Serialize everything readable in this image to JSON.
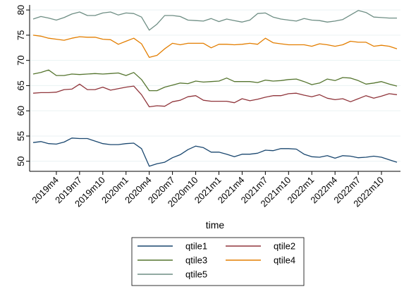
{
  "chart_data": {
    "type": "line",
    "title": "",
    "xlabel": "time",
    "ylabel": "",
    "ylim": [
      48,
      81
    ],
    "y_ticks": [
      50,
      55,
      60,
      65,
      70,
      75,
      80
    ],
    "x_start": "2019m1",
    "x_end": "2022m12",
    "x_ticks": [
      "2019m4",
      "2019m7",
      "2019m10",
      "2020m1",
      "2020m4",
      "2020m7",
      "2020m10",
      "2021m1",
      "2021m4",
      "2021m7",
      "2021m10",
      "2022m1",
      "2022m4",
      "2022m7",
      "2022m10"
    ],
    "grid": true,
    "legend_position": "bottom",
    "x": [
      "2019m1",
      "2019m2",
      "2019m3",
      "2019m4",
      "2019m5",
      "2019m6",
      "2019m7",
      "2019m8",
      "2019m9",
      "2019m10",
      "2019m11",
      "2019m12",
      "2020m1",
      "2020m2",
      "2020m3",
      "2020m4",
      "2020m5",
      "2020m6",
      "2020m7",
      "2020m8",
      "2020m9",
      "2020m10",
      "2020m11",
      "2020m12",
      "2021m1",
      "2021m2",
      "2021m3",
      "2021m4",
      "2021m5",
      "2021m6",
      "2021m7",
      "2021m8",
      "2021m9",
      "2021m10",
      "2021m11",
      "2021m12",
      "2022m1",
      "2022m2",
      "2022m3",
      "2022m4",
      "2022m5",
      "2022m6",
      "2022m7",
      "2022m8",
      "2022m9",
      "2022m10",
      "2022m11",
      "2022m12"
    ],
    "series": [
      {
        "name": "qtile1",
        "color": "#1a476f",
        "values": [
          53.7,
          53.9,
          53.5,
          53.4,
          53.8,
          54.6,
          54.5,
          54.5,
          54.0,
          53.5,
          53.3,
          53.3,
          53.5,
          53.6,
          52.5,
          49.0,
          49.5,
          49.8,
          50.7,
          51.3,
          52.3,
          53.0,
          52.7,
          51.8,
          51.8,
          51.4,
          50.9,
          51.4,
          51.4,
          51.6,
          52.2,
          52.1,
          52.5,
          52.5,
          52.4,
          51.4,
          50.9,
          50.8,
          51.1,
          50.6,
          51.1,
          51.0,
          50.7,
          50.8,
          51.0,
          50.8,
          50.3,
          49.8
        ]
      },
      {
        "name": "qtile2",
        "color": "#90353b",
        "values": [
          63.5,
          63.6,
          63.6,
          63.7,
          64.2,
          64.3,
          65.3,
          64.2,
          64.2,
          64.7,
          64.1,
          64.4,
          64.7,
          64.9,
          63.2,
          60.8,
          61.0,
          60.9,
          61.8,
          62.1,
          62.8,
          63.0,
          62.1,
          61.9,
          61.9,
          61.9,
          61.6,
          62.4,
          62.0,
          62.3,
          62.7,
          63.0,
          63.0,
          63.4,
          63.5,
          63.1,
          62.8,
          63.2,
          62.5,
          62.2,
          62.4,
          61.8,
          62.4,
          63.0,
          62.5,
          62.9,
          63.4,
          63.2
        ]
      },
      {
        "name": "qtile3",
        "color": "#55752f",
        "values": [
          67.3,
          67.6,
          68.1,
          67.0,
          67.0,
          67.3,
          67.2,
          67.3,
          67.4,
          67.3,
          67.4,
          67.5,
          67.0,
          67.6,
          66.2,
          64.0,
          64.0,
          64.7,
          65.1,
          65.5,
          65.4,
          65.9,
          65.7,
          65.8,
          65.9,
          66.5,
          65.8,
          65.8,
          65.8,
          65.6,
          66.1,
          65.9,
          66.0,
          66.2,
          66.3,
          65.8,
          65.2,
          65.5,
          66.3,
          66.0,
          66.6,
          66.5,
          66.0,
          65.3,
          65.5,
          65.8,
          65.3,
          64.9
        ]
      },
      {
        "name": "qtile4",
        "color": "#e37e00",
        "values": [
          75.0,
          74.8,
          74.4,
          74.2,
          74.0,
          74.4,
          74.7,
          74.6,
          74.6,
          74.2,
          74.1,
          73.2,
          73.8,
          74.4,
          73.3,
          70.6,
          71.0,
          72.3,
          73.4,
          73.1,
          73.4,
          73.4,
          73.4,
          72.5,
          73.2,
          73.2,
          73.1,
          73.2,
          73.4,
          73.2,
          74.4,
          73.5,
          73.3,
          73.1,
          73.1,
          73.1,
          72.8,
          73.3,
          73.1,
          72.8,
          73.1,
          73.8,
          73.6,
          73.6,
          72.8,
          73.0,
          72.8,
          72.3
        ]
      },
      {
        "name": "qtile5",
        "color": "#6e8e84",
        "values": [
          78.2,
          78.7,
          78.4,
          78.0,
          78.5,
          79.2,
          79.6,
          78.9,
          78.9,
          79.4,
          79.6,
          79.0,
          79.4,
          79.3,
          78.6,
          76.0,
          77.2,
          78.9,
          78.9,
          78.7,
          78.0,
          77.9,
          77.8,
          78.3,
          77.7,
          78.2,
          77.9,
          77.6,
          78.0,
          79.3,
          79.4,
          78.6,
          78.2,
          78.0,
          77.8,
          78.3,
          78.0,
          77.9,
          77.6,
          77.8,
          78.1,
          79.0,
          79.9,
          79.5,
          78.6,
          78.5,
          78.4,
          78.4
        ]
      }
    ]
  }
}
